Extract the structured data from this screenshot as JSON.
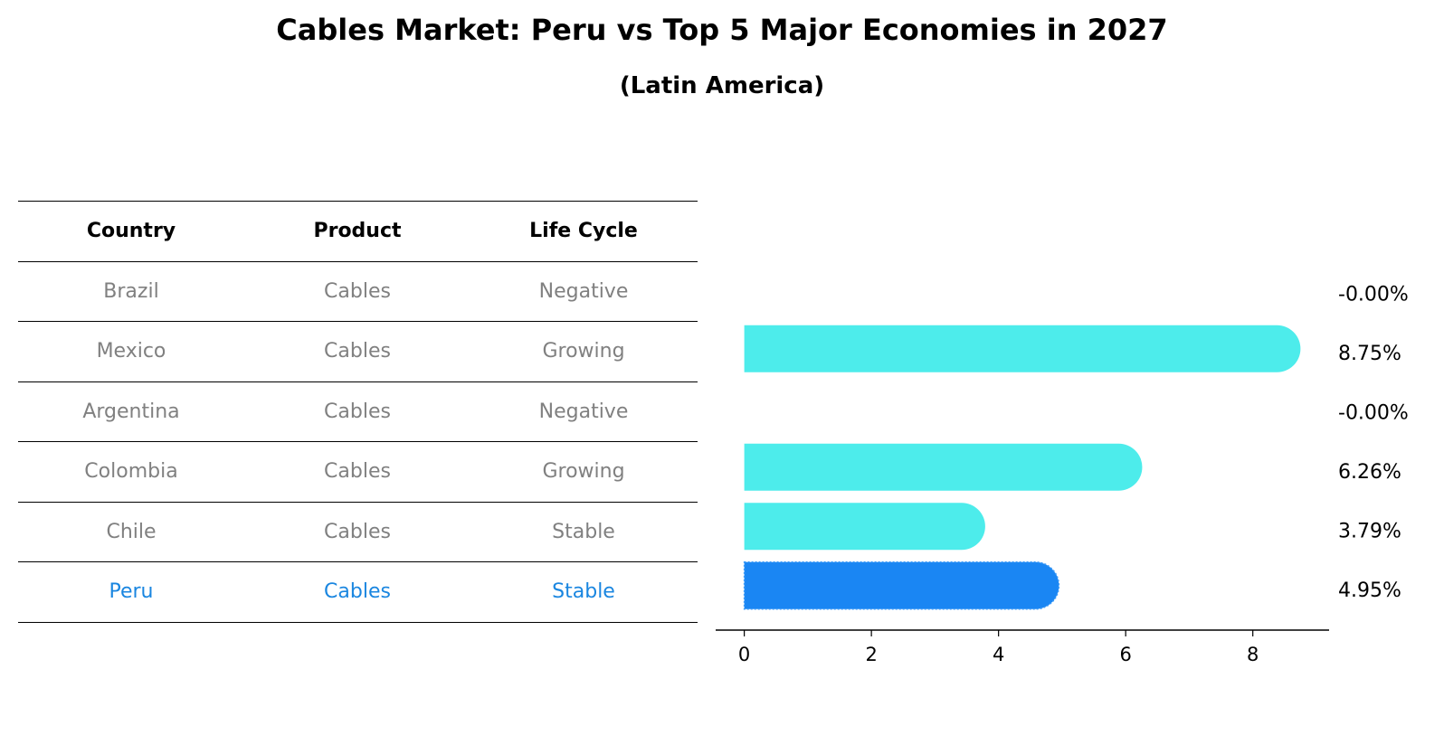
{
  "title": "Cables Market: Peru vs Top 5 Major Economies in 2027",
  "subtitle": "(Latin America)",
  "table": {
    "headers": [
      "Country",
      "Product",
      "Life Cycle"
    ],
    "rows": [
      {
        "country": "Brazil",
        "product": "Cables",
        "life_cycle": "Negative",
        "highlight": false
      },
      {
        "country": "Mexico",
        "product": "Cables",
        "life_cycle": "Growing",
        "highlight": false
      },
      {
        "country": "Argentina",
        "product": "Cables",
        "life_cycle": "Negative",
        "highlight": false
      },
      {
        "country": "Colombia",
        "product": "Cables",
        "life_cycle": "Growing",
        "highlight": false
      },
      {
        "country": "Chile",
        "product": "Cables",
        "life_cycle": "Stable",
        "highlight": false
      },
      {
        "country": "Peru",
        "product": "Cables",
        "life_cycle": "Stable",
        "highlight": true
      }
    ]
  },
  "colors": {
    "bar": "#4deceb",
    "highlight_bar": "#1a86f3",
    "highlight_text": "#1a86e0",
    "muted_text": "#808080"
  },
  "chart_data": {
    "type": "bar",
    "orientation": "horizontal",
    "categories": [
      "Brazil",
      "Mexico",
      "Argentina",
      "Colombia",
      "Chile",
      "Peru"
    ],
    "values": [
      -0.0,
      8.75,
      -0.0,
      6.26,
      3.79,
      4.95
    ],
    "value_labels": [
      "-0.00%",
      "8.75%",
      "-0.00%",
      "6.26%",
      "3.79%",
      "4.95%"
    ],
    "highlight_category": "Peru",
    "xlim": [
      -0.45,
      9.2
    ],
    "xticks": [
      0,
      2,
      4,
      6,
      8
    ],
    "xlabel": "",
    "ylabel": "",
    "grid": false
  }
}
